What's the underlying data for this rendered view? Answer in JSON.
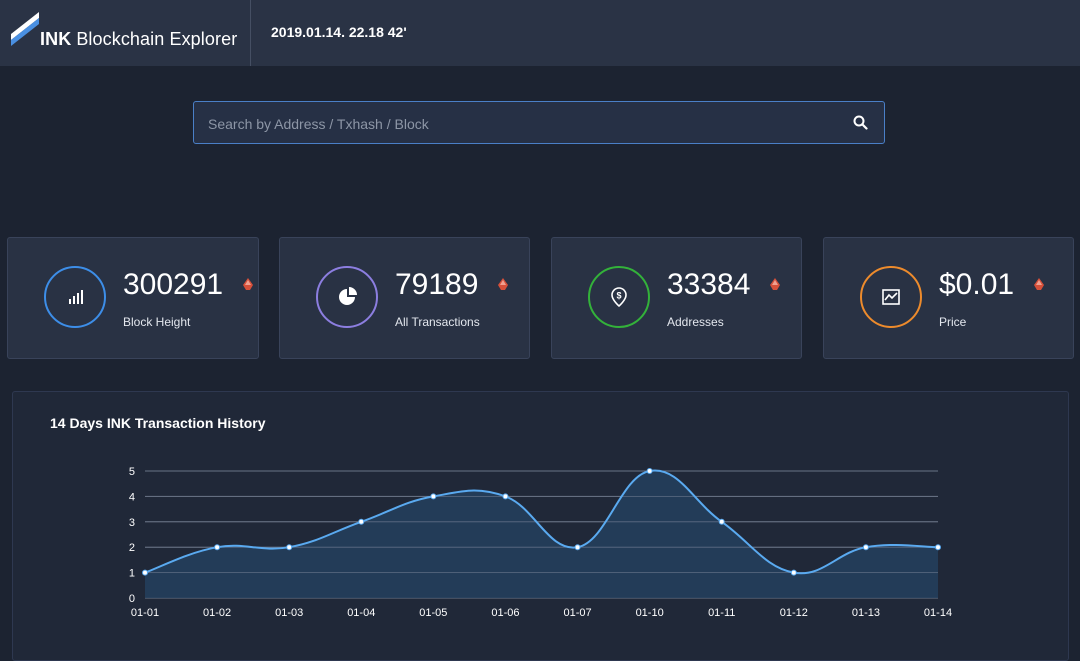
{
  "header": {
    "brand_bold": "INK",
    "brand_rest": "Blockchain Explorer",
    "datetime": "2019.01.14. 22.18 42'"
  },
  "search": {
    "placeholder": "Search by Address / Txhash / Block",
    "icon": "search-icon"
  },
  "stats": [
    {
      "value": "300291",
      "label": "Block Height",
      "icon": "signal-bars-icon",
      "color": "#3d8ee8"
    },
    {
      "value": "79189",
      "label": "All Transactions",
      "icon": "pie-chart-icon",
      "color": "#8c7ee0"
    },
    {
      "value": "33384",
      "label": "Addresses",
      "icon": "dollar-pin-icon",
      "color": "#33b23a"
    },
    {
      "value": "$0.01",
      "label": "Price",
      "icon": "line-chart-icon",
      "color": "#ed8b2c"
    }
  ],
  "colors": {
    "accent": "#5aaaf0",
    "trend": "#d6503a"
  },
  "chart_data": {
    "type": "area",
    "title": "14 Days INK Transaction History",
    "categories": [
      "01-01",
      "01-02",
      "01-03",
      "01-04",
      "01-05",
      "01-06",
      "01-07",
      "01-10",
      "01-11",
      "01-12",
      "01-13",
      "01-14"
    ],
    "values": [
      1,
      2,
      2,
      3,
      4,
      4,
      2,
      5,
      3,
      1,
      2,
      2
    ],
    "ylim": [
      0,
      5
    ],
    "yticks": [
      0,
      1,
      2,
      3,
      4,
      5
    ],
    "grid": true,
    "smooth": true,
    "color": "#5aaaf0",
    "fill": "#24405e"
  }
}
